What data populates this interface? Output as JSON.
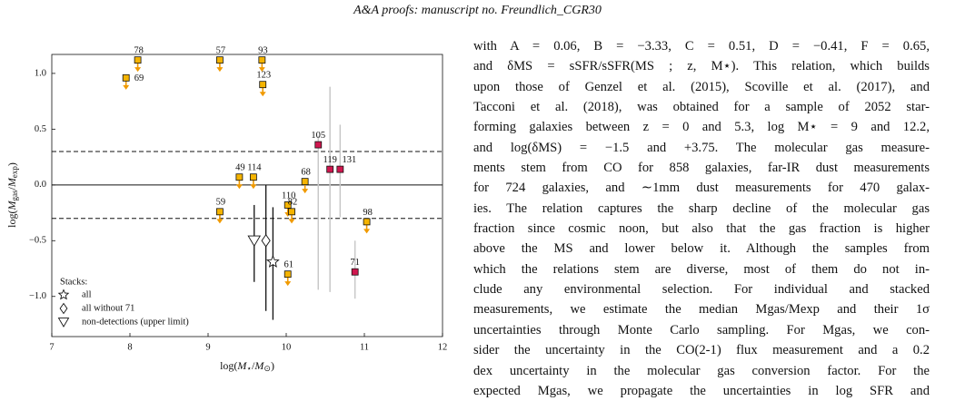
{
  "header": "A&A proofs: manuscript no. Freundlich_CGR30",
  "chart_data": {
    "type": "scatter",
    "xlabel": [
      "log(",
      "M",
      "⋆",
      "/",
      "M",
      "⊙",
      ")"
    ],
    "ylabel": [
      "log(",
      "M",
      "gas",
      "/",
      "M",
      "exp",
      ")"
    ],
    "xlim": [
      7,
      12
    ],
    "ylim": [
      -1.36,
      1.17
    ],
    "xticks": [
      7,
      8,
      9,
      10,
      11,
      12
    ],
    "yticks": [
      {
        "value": -1.0,
        "label": "−1.0"
      },
      {
        "value": -0.5,
        "label": "−0.5"
      },
      {
        "value": 0.0,
        "label": "0.0"
      },
      {
        "value": 0.5,
        "label": "0.5"
      },
      {
        "value": 1.0,
        "label": "1.0"
      }
    ],
    "reference_lines": [
      {
        "value": 0.3,
        "style": "dashed"
      },
      {
        "value": 0,
        "style": "solid"
      },
      {
        "value": -0.3,
        "style": "dashed"
      }
    ],
    "upper_limits": {
      "color": "#f5b400",
      "arrow_color": "#f09a00",
      "labels": [
        "78",
        "69",
        "57",
        "93",
        "123",
        "68",
        "49",
        "114",
        "110",
        "82",
        "59",
        "98",
        "61"
      ],
      "x": [
        8.1,
        7.95,
        9.15,
        9.69,
        9.7,
        10.24,
        9.4,
        9.58,
        10.02,
        10.07,
        9.15,
        11.03,
        10.02
      ],
      "y": [
        1.12,
        0.96,
        1.12,
        1.12,
        0.9,
        0.03,
        0.07,
        0.07,
        -0.18,
        -0.24,
        -0.24,
        -0.33,
        -0.8
      ]
    },
    "detections": {
      "color": "#d0174f",
      "bar_color": "#c8c8c8",
      "labels": [
        "105",
        "119",
        "131",
        "71"
      ],
      "x": [
        10.41,
        10.56,
        10.69,
        10.88
      ],
      "y": [
        0.36,
        0.14,
        0.14,
        -0.78
      ],
      "ylo": [
        -0.94,
        -0.96,
        -0.29,
        -1.02
      ],
      "yhi": [
        0.44,
        0.88,
        0.54,
        -0.5
      ]
    },
    "legend_title": "Stacks:",
    "stacks": [
      {
        "name": "all",
        "marker": "star",
        "x": 9.83,
        "y": -0.69,
        "ylo": -1.21,
        "yhi": -0.2
      },
      {
        "name": "all without 71",
        "marker": "diamond",
        "x": 9.74,
        "y": -0.5,
        "ylo": -1.13,
        "yhi": 0.0
      },
      {
        "name": "non-detections (upper limit)",
        "marker": "triangle",
        "x": 9.59,
        "y": -0.5,
        "ylo": -0.87,
        "yhi": -0.18
      }
    ]
  },
  "body_lines": [
    "with A = 0.06, B = −3.33, C = 0.51, D = −0.41, F = 0.65,",
    "and δMS = sSFR/sSFR(MS ; z, M⋆). This relation, which builds",
    "upon those of Genzel et al. (2015), Scoville et al. (2017), and",
    "Tacconi et al. (2018), was obtained for a sample of 2052 star-",
    "forming galaxies between z = 0 and 5.3, log M⋆ = 9 and 12.2,",
    "and log(δMS) = −1.5 and +3.75. The molecular gas measure-",
    "ments stem from CO for 858 galaxies, far-IR dust measurements",
    "for 724 galaxies, and ∼1mm dust measurements for 470 galax-",
    "ies. The relation captures the sharp decline of the molecular gas",
    "fraction since cosmic noon, but also that the gas fraction is higher",
    "above the MS and lower below it. Although the samples from",
    "which the relations stem are diverse, most of them do not in-",
    "clude any environmental selection. For individual and stacked",
    "measurements, we estimate the median Mgas/Mexp and their 1σ",
    "uncertainties through Monte Carlo sampling. For Mgas, we con-",
    "sider the uncertainty in the CO(2-1) flux measurement and a 0.2",
    "dex uncertainty in the molecular gas conversion factor. For the",
    "expected Mgas, we propagate the uncertainties in log SFR and"
  ]
}
